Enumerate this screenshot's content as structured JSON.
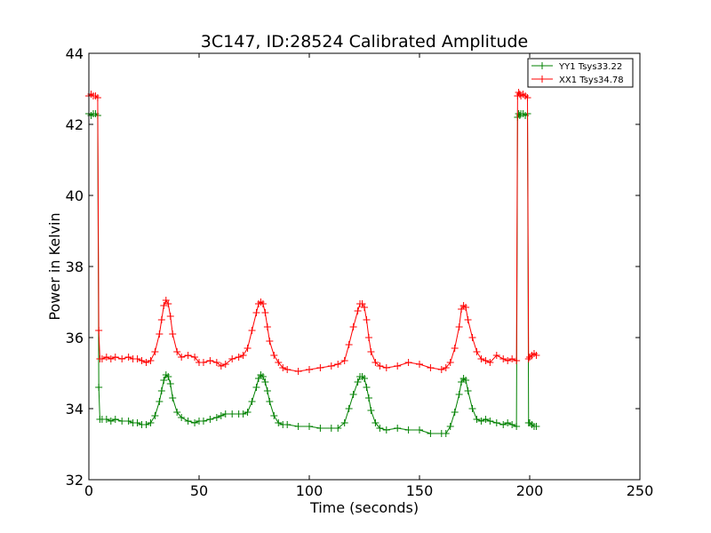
{
  "chart_data": {
    "type": "line",
    "title": "3C147, ID:28524 Calibrated Amplitude",
    "xlabel": "Time (seconds)",
    "ylabel": "Power in Kelvin",
    "xlim": [
      0,
      250
    ],
    "ylim": [
      32,
      44
    ],
    "xticks": [
      0,
      50,
      100,
      150,
      200,
      250
    ],
    "yticks": [
      32,
      34,
      36,
      38,
      40,
      42,
      44
    ],
    "grid": false,
    "legend_position": "top-right",
    "marker": "plus",
    "series": [
      {
        "name": "YY1 Tsys33.22",
        "color": "#008000",
        "x": [
          0,
          1,
          2,
          3,
          4,
          4.5,
          5,
          6,
          8,
          10,
          12,
          15,
          18,
          20,
          22,
          24,
          26,
          28,
          30,
          32,
          33,
          34,
          35,
          36,
          37,
          38,
          40,
          42,
          45,
          48,
          50,
          52,
          55,
          58,
          60,
          62,
          65,
          68,
          70,
          72,
          74,
          76,
          77,
          78,
          79,
          80,
          81,
          82,
          84,
          86,
          88,
          90,
          95,
          100,
          105,
          110,
          113,
          116,
          118,
          120,
          122,
          123,
          124,
          125,
          126,
          127,
          128,
          130,
          132,
          135,
          140,
          145,
          150,
          155,
          160,
          162,
          164,
          166,
          168,
          169,
          170,
          171,
          172,
          174,
          176,
          178,
          180,
          182,
          185,
          188,
          190,
          192,
          194,
          194.5,
          195,
          195.5,
          196,
          197,
          198,
          199,
          199.5,
          200,
          201,
          202,
          203
        ],
        "y": [
          42.3,
          42.25,
          42.3,
          42.3,
          42.25,
          34.6,
          33.7,
          33.7,
          33.7,
          33.65,
          33.7,
          33.65,
          33.65,
          33.6,
          33.6,
          33.55,
          33.55,
          33.6,
          33.8,
          34.2,
          34.5,
          34.8,
          34.95,
          34.9,
          34.7,
          34.3,
          33.9,
          33.75,
          33.65,
          33.6,
          33.65,
          33.65,
          33.7,
          33.75,
          33.8,
          33.85,
          33.85,
          33.85,
          33.85,
          33.9,
          34.2,
          34.6,
          34.85,
          34.95,
          34.9,
          34.75,
          34.5,
          34.2,
          33.8,
          33.6,
          33.55,
          33.55,
          33.5,
          33.5,
          33.45,
          33.45,
          33.45,
          33.6,
          34.0,
          34.4,
          34.75,
          34.9,
          34.9,
          34.85,
          34.6,
          34.3,
          33.95,
          33.6,
          33.45,
          33.4,
          33.45,
          33.4,
          33.4,
          33.3,
          33.3,
          33.3,
          33.5,
          33.9,
          34.4,
          34.75,
          34.85,
          34.8,
          34.5,
          34.0,
          33.7,
          33.65,
          33.7,
          33.65,
          33.6,
          33.55,
          33.6,
          33.55,
          33.5,
          42.2,
          42.3,
          42.25,
          42.3,
          42.3,
          42.25,
          42.3,
          33.6,
          33.6,
          33.55,
          33.5,
          33.5
        ]
      },
      {
        "name": "XX1 Tsys34.78",
        "color": "#ff0000",
        "x": [
          0,
          1,
          2,
          3,
          4,
          4.5,
          5,
          6,
          8,
          10,
          12,
          15,
          18,
          20,
          22,
          24,
          26,
          28,
          30,
          32,
          33,
          34,
          35,
          36,
          37,
          38,
          40,
          42,
          45,
          48,
          50,
          52,
          55,
          58,
          60,
          62,
          65,
          68,
          70,
          72,
          74,
          76,
          77,
          78,
          79,
          80,
          81,
          82,
          84,
          86,
          88,
          90,
          95,
          100,
          105,
          110,
          113,
          116,
          118,
          120,
          122,
          123,
          124,
          125,
          126,
          127,
          128,
          130,
          132,
          135,
          140,
          145,
          150,
          155,
          160,
          162,
          164,
          166,
          168,
          169,
          170,
          171,
          172,
          174,
          176,
          178,
          180,
          182,
          185,
          188,
          190,
          192,
          194,
          194.5,
          195,
          195.5,
          196,
          197,
          198,
          199,
          199.5,
          200,
          201,
          202,
          203
        ],
        "y": [
          42.8,
          42.85,
          42.8,
          42.8,
          42.75,
          36.2,
          35.4,
          35.4,
          35.45,
          35.4,
          35.45,
          35.4,
          35.45,
          35.4,
          35.4,
          35.35,
          35.3,
          35.35,
          35.6,
          36.1,
          36.5,
          36.9,
          37.05,
          36.95,
          36.6,
          36.1,
          35.6,
          35.45,
          35.5,
          35.45,
          35.3,
          35.3,
          35.35,
          35.3,
          35.2,
          35.25,
          35.4,
          35.45,
          35.5,
          35.7,
          36.2,
          36.7,
          36.95,
          37.0,
          36.95,
          36.7,
          36.3,
          35.9,
          35.5,
          35.3,
          35.15,
          35.1,
          35.05,
          35.1,
          35.15,
          35.2,
          35.25,
          35.35,
          35.8,
          36.3,
          36.75,
          36.95,
          36.95,
          36.85,
          36.5,
          36.0,
          35.6,
          35.3,
          35.2,
          35.15,
          35.2,
          35.3,
          35.25,
          35.15,
          35.1,
          35.15,
          35.3,
          35.7,
          36.3,
          36.8,
          36.9,
          36.85,
          36.5,
          36.0,
          35.6,
          35.4,
          35.35,
          35.3,
          35.5,
          35.4,
          35.35,
          35.4,
          35.35,
          42.8,
          42.9,
          42.85,
          42.8,
          42.85,
          42.8,
          42.75,
          35.4,
          35.45,
          35.5,
          35.55,
          35.5
        ]
      }
    ]
  }
}
